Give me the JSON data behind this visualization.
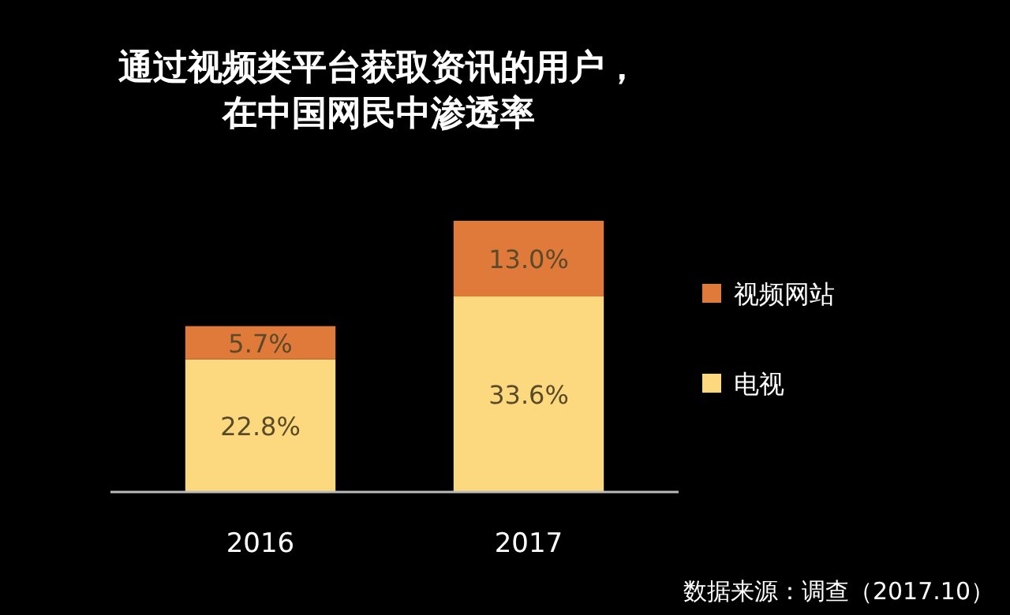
{
  "chart_data": {
    "type": "bar",
    "stacked": true,
    "title": "通过视频类平台获取资讯的用户，",
    "subtitle": "在中国网民中渗透率",
    "categories": [
      "2016",
      "2017"
    ],
    "series": [
      {
        "name": "电视",
        "color": "#fcd97e",
        "values": [
          22.8,
          33.6
        ],
        "value_labels": [
          "22.8%",
          "33.6%"
        ]
      },
      {
        "name": "视频网站",
        "color": "#e07a3a",
        "values": [
          5.7,
          13.0
        ],
        "value_labels": [
          "5.7%",
          "13.0%"
        ]
      }
    ],
    "legend": "right",
    "annotations": [
      "数据来源：调查（2017.10）"
    ]
  }
}
